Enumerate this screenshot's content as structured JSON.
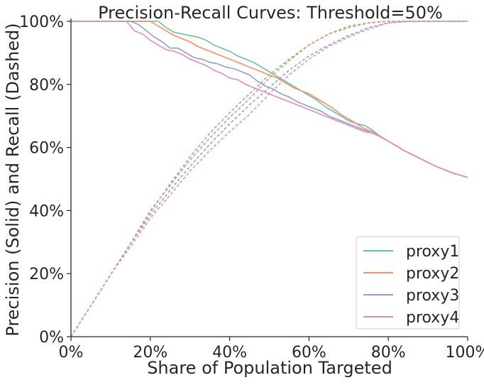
{
  "chart_data": {
    "type": "line",
    "title": "Precision-Recall Curves: Threshold=50%",
    "xlabel": "Share of Population Targeted",
    "ylabel": "Precision (Solid) and Recall (Dashed)",
    "xlim": [
      0,
      100
    ],
    "ylim": [
      0,
      100
    ],
    "xticks": [
      0,
      20,
      40,
      60,
      80,
      100
    ],
    "yticks": [
      0,
      20,
      40,
      60,
      80,
      100
    ],
    "xtick_labels": [
      "0%",
      "20%",
      "40%",
      "60%",
      "80%",
      "100%"
    ],
    "ytick_labels": [
      "0%",
      "20%",
      "40%",
      "60%",
      "80%",
      "100%"
    ],
    "grid": false,
    "legend_position": "bottom-right",
    "series": [
      {
        "name": "proxy1",
        "color": "#66c2a5",
        "precision": [
          [
            0,
            100
          ],
          [
            5,
            100
          ],
          [
            10,
            100
          ],
          [
            15,
            100
          ],
          [
            20,
            100
          ],
          [
            22,
            100
          ],
          [
            24,
            98
          ],
          [
            26,
            96.5
          ],
          [
            28,
            96
          ],
          [
            30,
            95.5
          ],
          [
            32,
            95
          ],
          [
            34,
            94
          ],
          [
            36,
            92.5
          ],
          [
            38,
            91.5
          ],
          [
            40,
            90.5
          ],
          [
            42,
            89
          ],
          [
            44,
            88
          ],
          [
            46,
            87
          ],
          [
            48,
            85.5
          ],
          [
            50,
            84
          ],
          [
            52,
            82.5
          ],
          [
            54,
            81
          ],
          [
            56,
            79.5
          ],
          [
            58,
            78
          ],
          [
            60,
            76.5
          ],
          [
            62,
            75
          ],
          [
            64,
            73
          ],
          [
            66,
            71.5
          ],
          [
            68,
            70
          ],
          [
            70,
            68.5
          ],
          [
            72,
            67.5
          ],
          [
            74,
            67
          ],
          [
            76,
            65.5
          ],
          [
            78,
            63.5
          ],
          [
            80,
            62
          ],
          [
            84,
            59
          ],
          [
            88,
            56.5
          ],
          [
            92,
            54
          ],
          [
            96,
            52
          ],
          [
            100,
            50.5
          ]
        ],
        "recall": [
          [
            0,
            0
          ],
          [
            5,
            9.8
          ],
          [
            10,
            19.7
          ],
          [
            15,
            29.5
          ],
          [
            20,
            39.5
          ],
          [
            25,
            48.5
          ],
          [
            30,
            57
          ],
          [
            35,
            64.5
          ],
          [
            40,
            71
          ],
          [
            45,
            77
          ],
          [
            50,
            83
          ],
          [
            55,
            88
          ],
          [
            60,
            92.5
          ],
          [
            65,
            96
          ],
          [
            70,
            98
          ],
          [
            75,
            99.5
          ],
          [
            80,
            100
          ],
          [
            90,
            100
          ],
          [
            100,
            100
          ]
        ]
      },
      {
        "name": "proxy2",
        "color": "#fc8d62",
        "precision": [
          [
            0,
            100
          ],
          [
            5,
            100
          ],
          [
            10,
            100
          ],
          [
            15,
            100
          ],
          [
            18,
            100
          ],
          [
            20,
            100
          ],
          [
            22,
            98.5
          ],
          [
            24,
            97
          ],
          [
            26,
            95.5
          ],
          [
            28,
            94.5
          ],
          [
            30,
            93.5
          ],
          [
            32,
            92
          ],
          [
            34,
            91
          ],
          [
            36,
            90
          ],
          [
            38,
            89
          ],
          [
            40,
            88
          ],
          [
            42,
            87
          ],
          [
            44,
            86
          ],
          [
            46,
            85
          ],
          [
            48,
            84
          ],
          [
            50,
            83
          ],
          [
            52,
            82
          ],
          [
            54,
            80.5
          ],
          [
            56,
            79
          ],
          [
            58,
            78
          ],
          [
            60,
            77
          ],
          [
            62,
            75.5
          ],
          [
            64,
            74
          ],
          [
            66,
            72.5
          ],
          [
            68,
            70.5
          ],
          [
            70,
            69
          ],
          [
            72,
            67.5
          ],
          [
            74,
            66
          ],
          [
            76,
            65
          ],
          [
            78,
            63.5
          ],
          [
            80,
            62
          ],
          [
            84,
            59
          ],
          [
            88,
            56.5
          ],
          [
            92,
            54
          ],
          [
            96,
            52
          ],
          [
            100,
            50.5
          ]
        ],
        "recall": [
          [
            0,
            0
          ],
          [
            5,
            9.8
          ],
          [
            10,
            19.7
          ],
          [
            15,
            29.5
          ],
          [
            20,
            40
          ],
          [
            25,
            48
          ],
          [
            30,
            56
          ],
          [
            35,
            63
          ],
          [
            40,
            69.5
          ],
          [
            45,
            75.5
          ],
          [
            50,
            82
          ],
          [
            55,
            87.5
          ],
          [
            60,
            92.5
          ],
          [
            65,
            96
          ],
          [
            70,
            98.5
          ],
          [
            75,
            99.5
          ],
          [
            80,
            100
          ],
          [
            90,
            100
          ],
          [
            100,
            100
          ]
        ]
      },
      {
        "name": "proxy3",
        "color": "#8da0cb",
        "precision": [
          [
            0,
            100
          ],
          [
            5,
            100
          ],
          [
            10,
            100
          ],
          [
            15,
            100
          ],
          [
            17,
            99
          ],
          [
            19,
            97
          ],
          [
            21,
            95
          ],
          [
            23,
            93.5
          ],
          [
            25,
            91.5
          ],
          [
            27,
            91.5
          ],
          [
            29,
            90
          ],
          [
            31,
            88.5
          ],
          [
            33,
            88
          ],
          [
            35,
            87
          ],
          [
            37,
            86.5
          ],
          [
            39,
            85.5
          ],
          [
            41,
            85
          ],
          [
            43,
            84
          ],
          [
            45,
            83
          ],
          [
            47,
            81
          ],
          [
            49,
            79.5
          ],
          [
            51,
            78.5
          ],
          [
            53,
            77
          ],
          [
            55,
            76
          ],
          [
            57,
            74.5
          ],
          [
            59,
            73.5
          ],
          [
            61,
            72.5
          ],
          [
            63,
            71.5
          ],
          [
            65,
            70
          ],
          [
            67,
            69
          ],
          [
            69,
            68
          ],
          [
            71,
            67
          ],
          [
            73,
            66
          ],
          [
            75,
            65
          ],
          [
            77,
            64
          ],
          [
            80,
            62
          ],
          [
            84,
            59
          ],
          [
            88,
            56.5
          ],
          [
            92,
            54
          ],
          [
            96,
            52
          ],
          [
            100,
            50.5
          ]
        ],
        "recall": [
          [
            0,
            0
          ],
          [
            5,
            9.8
          ],
          [
            10,
            19.7
          ],
          [
            15,
            29.5
          ],
          [
            20,
            38.5
          ],
          [
            25,
            46.5
          ],
          [
            30,
            54
          ],
          [
            35,
            61
          ],
          [
            40,
            67.5
          ],
          [
            45,
            73.5
          ],
          [
            50,
            79
          ],
          [
            55,
            84.5
          ],
          [
            60,
            89
          ],
          [
            65,
            92.5
          ],
          [
            70,
            95.5
          ],
          [
            75,
            98
          ],
          [
            80,
            99.5
          ],
          [
            85,
            100
          ],
          [
            90,
            100
          ],
          [
            100,
            100
          ]
        ]
      },
      {
        "name": "proxy4",
        "color": "#e78ac3",
        "precision": [
          [
            0,
            100
          ],
          [
            5,
            100
          ],
          [
            10,
            100
          ],
          [
            14,
            100
          ],
          [
            16,
            97
          ],
          [
            18,
            96
          ],
          [
            20,
            94
          ],
          [
            22,
            92.5
          ],
          [
            24,
            91
          ],
          [
            26,
            90.5
          ],
          [
            28,
            89.5
          ],
          [
            30,
            88
          ],
          [
            32,
            87
          ],
          [
            34,
            86
          ],
          [
            36,
            84.5
          ],
          [
            38,
            83.5
          ],
          [
            40,
            82
          ],
          [
            42,
            81.5
          ],
          [
            44,
            80
          ],
          [
            46,
            79
          ],
          [
            48,
            78
          ],
          [
            50,
            77
          ],
          [
            52,
            76
          ],
          [
            54,
            75
          ],
          [
            56,
            74
          ],
          [
            58,
            73
          ],
          [
            60,
            72
          ],
          [
            62,
            71
          ],
          [
            64,
            70
          ],
          [
            66,
            69
          ],
          [
            68,
            68
          ],
          [
            70,
            67
          ],
          [
            72,
            66
          ],
          [
            74,
            65
          ],
          [
            76,
            64.5
          ],
          [
            78,
            63.5
          ],
          [
            80,
            62
          ],
          [
            84,
            59
          ],
          [
            88,
            56.5
          ],
          [
            92,
            54
          ],
          [
            96,
            52
          ],
          [
            100,
            50.5
          ]
        ],
        "recall": [
          [
            0,
            0
          ],
          [
            5,
            9.8
          ],
          [
            10,
            19.7
          ],
          [
            15,
            28.5
          ],
          [
            20,
            37.5
          ],
          [
            25,
            45
          ],
          [
            30,
            52.5
          ],
          [
            35,
            59
          ],
          [
            40,
            65
          ],
          [
            45,
            70.5
          ],
          [
            50,
            77
          ],
          [
            55,
            83
          ],
          [
            60,
            88
          ],
          [
            65,
            92
          ],
          [
            70,
            95
          ],
          [
            75,
            97.5
          ],
          [
            80,
            99.5
          ],
          [
            85,
            100
          ],
          [
            90,
            100
          ],
          [
            100,
            100
          ]
        ]
      }
    ]
  }
}
